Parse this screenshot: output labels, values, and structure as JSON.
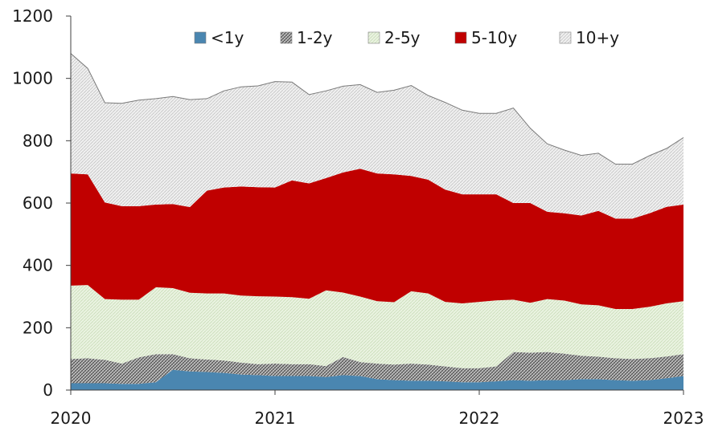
{
  "chart_data": {
    "type": "area",
    "stacked": true,
    "x": [
      2020.0,
      2020.083,
      2020.167,
      2020.25,
      2020.333,
      2020.417,
      2020.5,
      2020.583,
      2020.667,
      2020.75,
      2020.833,
      2020.917,
      2021.0,
      2021.083,
      2021.167,
      2021.25,
      2021.333,
      2021.417,
      2021.5,
      2021.583,
      2021.667,
      2021.75,
      2021.833,
      2021.917,
      2022.0,
      2022.083,
      2022.167,
      2022.25,
      2022.333,
      2022.417,
      2022.5,
      2022.583,
      2022.667,
      2022.75,
      2022.833,
      2022.917,
      2023.0
    ],
    "x_ticks": [
      {
        "value": 2020,
        "label": "2020"
      },
      {
        "value": 2021,
        "label": "2021"
      },
      {
        "value": 2022,
        "label": "2022"
      },
      {
        "value": 2023,
        "label": "2023"
      }
    ],
    "xlim": [
      2020,
      2023
    ],
    "ylim": [
      0,
      1200
    ],
    "y_ticks": [
      0,
      200,
      400,
      600,
      800,
      1000,
      1200
    ],
    "grid": false,
    "legend_position": "top",
    "series": [
      {
        "name": "<1y",
        "color": "#4a86b0",
        "pattern": "solid",
        "values": [
          22,
          22,
          22,
          20,
          20,
          25,
          65,
          60,
          58,
          55,
          50,
          48,
          45,
          45,
          45,
          42,
          48,
          45,
          35,
          32,
          30,
          30,
          28,
          25,
          25,
          28,
          32,
          30,
          32,
          32,
          35,
          35,
          32,
          30,
          32,
          38,
          45
        ]
      },
      {
        "name": "1-2y",
        "color": "#8a8a8a",
        "pattern": "hatch-dark",
        "values": [
          78,
          80,
          75,
          65,
          85,
          90,
          50,
          42,
          40,
          40,
          38,
          35,
          40,
          38,
          38,
          35,
          58,
          45,
          50,
          50,
          55,
          52,
          48,
          45,
          45,
          48,
          90,
          90,
          90,
          85,
          75,
          72,
          70,
          70,
          70,
          70,
          70
        ]
      },
      {
        "name": "2-5y",
        "color": "#e2efd7",
        "pattern": "hatch-light-green",
        "values": [
          235,
          235,
          195,
          205,
          185,
          215,
          212,
          210,
          212,
          215,
          215,
          218,
          215,
          215,
          210,
          243,
          207,
          210,
          200,
          200,
          232,
          228,
          207,
          208,
          213,
          212,
          168,
          160,
          170,
          170,
          165,
          165,
          158,
          160,
          165,
          170,
          170
        ]
      },
      {
        "name": "5-10y",
        "color": "#c00000",
        "pattern": "solid",
        "values": [
          360,
          355,
          310,
          300,
          300,
          265,
          270,
          275,
          330,
          340,
          350,
          350,
          350,
          375,
          370,
          360,
          385,
          410,
          410,
          410,
          370,
          365,
          360,
          350,
          345,
          340,
          310,
          320,
          280,
          280,
          285,
          303,
          290,
          290,
          300,
          310,
          310
        ]
      },
      {
        "name": "10+y",
        "color": "#ececec",
        "pattern": "hatch-light",
        "values": [
          385,
          340,
          320,
          330,
          340,
          340,
          345,
          345,
          295,
          310,
          320,
          325,
          340,
          315,
          285,
          280,
          277,
          270,
          260,
          270,
          290,
          270,
          280,
          270,
          260,
          260,
          305,
          240,
          218,
          203,
          193,
          185,
          175,
          175,
          185,
          187,
          215
        ]
      }
    ]
  }
}
